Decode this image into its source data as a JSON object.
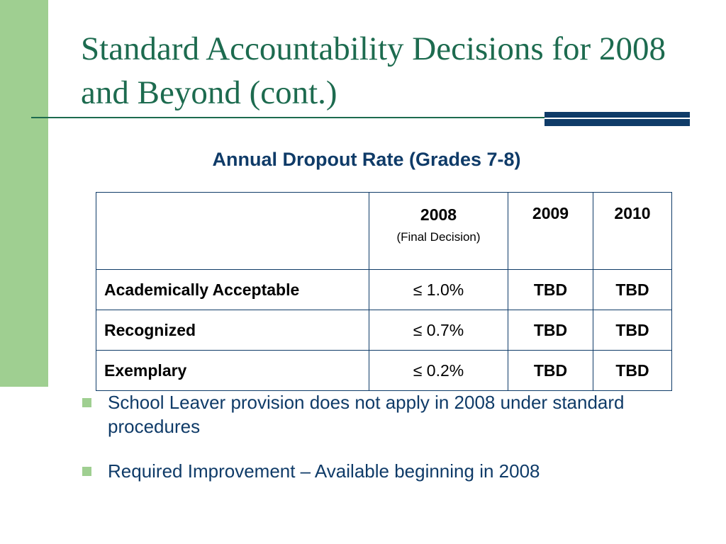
{
  "slide": {
    "title": "Standard Accountability Decisions for 2008 and Beyond (cont.)",
    "subtitle": "Annual Dropout Rate (Grades 7-8)",
    "colors": {
      "title": "#1d6b4f",
      "accent_bar": "#0f3b68",
      "left_bar": "#9fcf91",
      "text": "#0f3b68"
    }
  },
  "table": {
    "headers": [
      {
        "label": "",
        "note": ""
      },
      {
        "label": "2008",
        "note": "(Final Decision)"
      },
      {
        "label": "2009",
        "note": ""
      },
      {
        "label": "2010",
        "note": ""
      }
    ],
    "rows": [
      {
        "label": "Academically Acceptable",
        "y2008": "≤ 1.0%",
        "y2009": "TBD",
        "y2010": "TBD"
      },
      {
        "label": "Recognized",
        "y2008": "≤ 0.7%",
        "y2009": "TBD",
        "y2010": "TBD"
      },
      {
        "label": "Exemplary",
        "y2008": "≤ 0.2%",
        "y2009": "TBD",
        "y2010": "TBD"
      }
    ]
  },
  "bullets": [
    {
      "text": "School Leaver provision does not apply in 2008 under standard procedures",
      "icon": "square-bullet-icon"
    },
    {
      "text": "Required Improvement – Available beginning in 2008",
      "icon": "square-bullet-icon"
    }
  ]
}
